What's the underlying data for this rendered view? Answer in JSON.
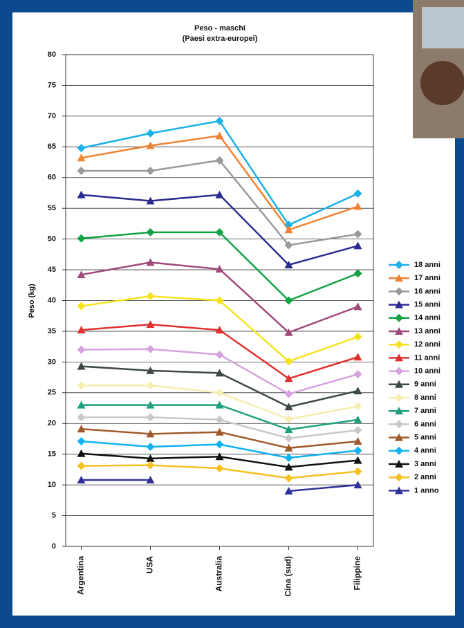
{
  "chart_data": {
    "type": "line",
    "title": "Peso - maschi",
    "subtitle": "(Paesi extra-europei)",
    "y_label": "Peso (kg)",
    "categories": [
      "Argentina",
      "USA",
      "Australia",
      "Cina (sud)",
      "Filippine"
    ],
    "ylim": [
      0,
      80
    ],
    "yticks": [
      0,
      5,
      10,
      15,
      20,
      25,
      30,
      35,
      40,
      45,
      50,
      55,
      60,
      65,
      70,
      75,
      80
    ],
    "grid": true,
    "legend": "right",
    "series": [
      {
        "name": "18 anni",
        "color": "#1ab0e8",
        "marker": "diamond",
        "values": [
          64.8,
          67.2,
          69.2,
          52.3,
          57.4
        ]
      },
      {
        "name": "17 anni",
        "color": "#f08232",
        "marker": "triangle",
        "values": [
          63.2,
          65.2,
          66.8,
          51.5,
          55.3
        ]
      },
      {
        "name": "16 anni",
        "color": "#9a9a9a",
        "marker": "diamond",
        "values": [
          61.1,
          61.1,
          62.8,
          49.0,
          50.8
        ]
      },
      {
        "name": "15 anni",
        "color": "#2a2a90",
        "marker": "triangle",
        "values": [
          57.2,
          56.2,
          57.2,
          45.8,
          48.9
        ]
      },
      {
        "name": "14 anni",
        "color": "#12a443",
        "marker": "diamond",
        "values": [
          50.1,
          51.1,
          51.1,
          40.0,
          44.4
        ]
      },
      {
        "name": "13 anni",
        "color": "#a04a7c",
        "marker": "triangle",
        "values": [
          44.2,
          46.2,
          45.1,
          34.8,
          39.0
        ]
      },
      {
        "name": "12 anni",
        "color": "#f6e31e",
        "marker": "diamond",
        "values": [
          39.1,
          40.7,
          40.0,
          30.1,
          34.1
        ]
      },
      {
        "name": "11 anni",
        "color": "#e0302e",
        "marker": "triangle",
        "values": [
          35.2,
          36.1,
          35.2,
          27.3,
          30.8
        ]
      },
      {
        "name": "10 anni",
        "color": "#d6a2e0",
        "marker": "diamond",
        "values": [
          32.0,
          32.1,
          31.2,
          24.8,
          28.0
        ]
      },
      {
        "name": "9 anni",
        "color": "#3e4848",
        "marker": "triangle",
        "values": [
          29.3,
          28.6,
          28.2,
          22.7,
          25.3
        ]
      },
      {
        "name": "8 anni",
        "color": "#f5eeb0",
        "marker": "diamond",
        "values": [
          26.2,
          26.2,
          25.0,
          20.7,
          22.8
        ]
      },
      {
        "name": "7 anni",
        "color": "#1ea07e",
        "marker": "triangle",
        "values": [
          23.0,
          23.0,
          23.0,
          19.0,
          20.6
        ]
      },
      {
        "name": "6 anni",
        "color": "#c8c8c8",
        "marker": "diamond",
        "values": [
          21.0,
          21.0,
          20.6,
          17.6,
          18.9
        ]
      },
      {
        "name": "5 anni",
        "color": "#a05a2a",
        "marker": "triangle",
        "values": [
          19.1,
          18.3,
          18.6,
          16.0,
          17.1
        ]
      },
      {
        "name": "4 anni",
        "color": "#10b2f0",
        "marker": "diamond",
        "values": [
          17.1,
          16.2,
          16.6,
          14.4,
          15.6
        ]
      },
      {
        "name": "3 anni",
        "color": "#111111",
        "marker": "triangle",
        "values": [
          15.1,
          14.3,
          14.6,
          12.9,
          14.0
        ]
      },
      {
        "name": "2 anni",
        "color": "#f6c020",
        "marker": "diamond",
        "values": [
          13.1,
          13.2,
          12.7,
          11.1,
          12.2
        ]
      },
      {
        "name": "1 anno",
        "color": "#30309a",
        "marker": "triangle",
        "values": [
          10.8,
          10.8,
          null,
          9.0,
          10.0
        ]
      }
    ]
  }
}
